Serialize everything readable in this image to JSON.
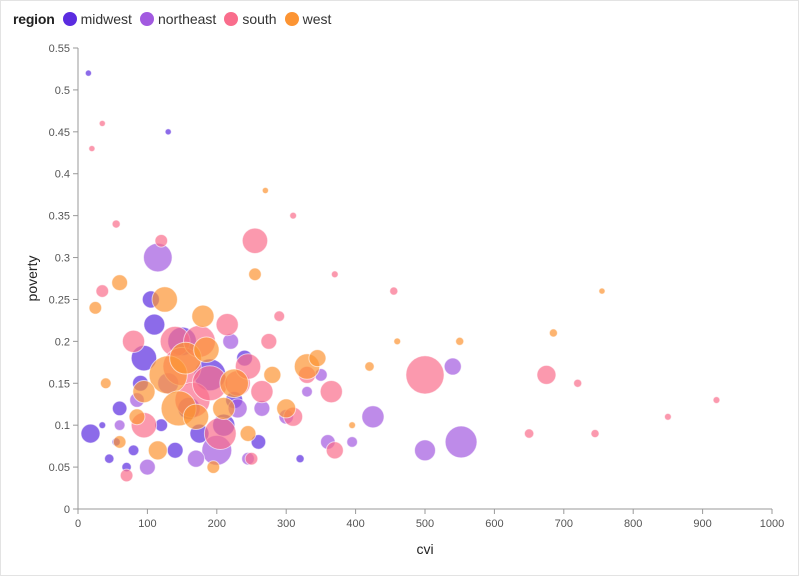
{
  "legend": {
    "title": "region",
    "items": [
      {
        "key": "midwest",
        "label": "midwest",
        "color": "#5b2ce0"
      },
      {
        "key": "northeast",
        "label": "northeast",
        "color": "#a25ae0"
      },
      {
        "key": "south",
        "label": "south",
        "color": "#f96d8c"
      },
      {
        "key": "west",
        "label": "west",
        "color": "#fc9433"
      }
    ]
  },
  "chart_data": {
    "type": "scatter",
    "xlabel": "cvi",
    "ylabel": "poverty",
    "xlim": [
      0,
      1000
    ],
    "ylim": [
      0,
      0.55
    ],
    "xticks": [
      0,
      100,
      200,
      300,
      400,
      500,
      600,
      700,
      800,
      900,
      1000
    ],
    "yticks": [
      0,
      0.05,
      0.1,
      0.15,
      0.2,
      0.25,
      0.3,
      0.35,
      0.4,
      0.45,
      0.5,
      0.55
    ],
    "grid": false,
    "legend_position": "top-left",
    "size_encoding": "bubble radius proportional to county size (relative 0-1)",
    "series": [
      {
        "name": "midwest",
        "points": [
          {
            "x": 15,
            "y": 0.52,
            "s": 0.05
          },
          {
            "x": 18,
            "y": 0.09,
            "s": 0.25
          },
          {
            "x": 45,
            "y": 0.06,
            "s": 0.1
          },
          {
            "x": 60,
            "y": 0.12,
            "s": 0.18
          },
          {
            "x": 80,
            "y": 0.07,
            "s": 0.12
          },
          {
            "x": 90,
            "y": 0.15,
            "s": 0.2
          },
          {
            "x": 95,
            "y": 0.18,
            "s": 0.35
          },
          {
            "x": 105,
            "y": 0.25,
            "s": 0.22
          },
          {
            "x": 110,
            "y": 0.22,
            "s": 0.28
          },
          {
            "x": 120,
            "y": 0.1,
            "s": 0.15
          },
          {
            "x": 130,
            "y": 0.45,
            "s": 0.05
          },
          {
            "x": 140,
            "y": 0.07,
            "s": 0.2
          },
          {
            "x": 150,
            "y": 0.2,
            "s": 0.4
          },
          {
            "x": 160,
            "y": 0.12,
            "s": 0.3
          },
          {
            "x": 175,
            "y": 0.09,
            "s": 0.25
          },
          {
            "x": 190,
            "y": 0.16,
            "s": 0.45
          },
          {
            "x": 210,
            "y": 0.1,
            "s": 0.3
          },
          {
            "x": 225,
            "y": 0.13,
            "s": 0.22
          },
          {
            "x": 240,
            "y": 0.18,
            "s": 0.2
          },
          {
            "x": 260,
            "y": 0.08,
            "s": 0.18
          },
          {
            "x": 320,
            "y": 0.06,
            "s": 0.08
          },
          {
            "x": 70,
            "y": 0.05,
            "s": 0.1
          },
          {
            "x": 35,
            "y": 0.1,
            "s": 0.06
          },
          {
            "x": 55,
            "y": 0.08,
            "s": 0.08
          }
        ]
      },
      {
        "name": "northeast",
        "points": [
          {
            "x": 115,
            "y": 0.3,
            "s": 0.4
          },
          {
            "x": 200,
            "y": 0.07,
            "s": 0.42
          },
          {
            "x": 220,
            "y": 0.2,
            "s": 0.2
          },
          {
            "x": 230,
            "y": 0.12,
            "s": 0.25
          },
          {
            "x": 265,
            "y": 0.12,
            "s": 0.2
          },
          {
            "x": 300,
            "y": 0.11,
            "s": 0.18
          },
          {
            "x": 350,
            "y": 0.16,
            "s": 0.15
          },
          {
            "x": 360,
            "y": 0.08,
            "s": 0.18
          },
          {
            "x": 395,
            "y": 0.08,
            "s": 0.12
          },
          {
            "x": 425,
            "y": 0.11,
            "s": 0.3
          },
          {
            "x": 500,
            "y": 0.07,
            "s": 0.28
          },
          {
            "x": 540,
            "y": 0.17,
            "s": 0.22
          },
          {
            "x": 552,
            "y": 0.08,
            "s": 0.45
          },
          {
            "x": 170,
            "y": 0.06,
            "s": 0.22
          },
          {
            "x": 130,
            "y": 0.15,
            "s": 0.28
          },
          {
            "x": 85,
            "y": 0.13,
            "s": 0.18
          },
          {
            "x": 245,
            "y": 0.06,
            "s": 0.15
          },
          {
            "x": 330,
            "y": 0.14,
            "s": 0.12
          },
          {
            "x": 100,
            "y": 0.05,
            "s": 0.2
          },
          {
            "x": 60,
            "y": 0.1,
            "s": 0.12
          }
        ]
      },
      {
        "name": "south",
        "points": [
          {
            "x": 20,
            "y": 0.43,
            "s": 0.05
          },
          {
            "x": 35,
            "y": 0.46,
            "s": 0.05
          },
          {
            "x": 55,
            "y": 0.34,
            "s": 0.08
          },
          {
            "x": 35,
            "y": 0.26,
            "s": 0.15
          },
          {
            "x": 120,
            "y": 0.32,
            "s": 0.15
          },
          {
            "x": 140,
            "y": 0.2,
            "s": 0.42
          },
          {
            "x": 150,
            "y": 0.17,
            "s": 0.55
          },
          {
            "x": 165,
            "y": 0.13,
            "s": 0.5
          },
          {
            "x": 175,
            "y": 0.2,
            "s": 0.45
          },
          {
            "x": 190,
            "y": 0.15,
            "s": 0.5
          },
          {
            "x": 205,
            "y": 0.09,
            "s": 0.45
          },
          {
            "x": 215,
            "y": 0.22,
            "s": 0.3
          },
          {
            "x": 230,
            "y": 0.15,
            "s": 0.35
          },
          {
            "x": 245,
            "y": 0.17,
            "s": 0.35
          },
          {
            "x": 255,
            "y": 0.32,
            "s": 0.35
          },
          {
            "x": 265,
            "y": 0.14,
            "s": 0.3
          },
          {
            "x": 275,
            "y": 0.2,
            "s": 0.2
          },
          {
            "x": 290,
            "y": 0.23,
            "s": 0.12
          },
          {
            "x": 310,
            "y": 0.11,
            "s": 0.25
          },
          {
            "x": 330,
            "y": 0.16,
            "s": 0.22
          },
          {
            "x": 365,
            "y": 0.14,
            "s": 0.3
          },
          {
            "x": 370,
            "y": 0.07,
            "s": 0.22
          },
          {
            "x": 310,
            "y": 0.35,
            "s": 0.06
          },
          {
            "x": 370,
            "y": 0.28,
            "s": 0.06
          },
          {
            "x": 455,
            "y": 0.26,
            "s": 0.08
          },
          {
            "x": 500,
            "y": 0.16,
            "s": 0.55
          },
          {
            "x": 650,
            "y": 0.09,
            "s": 0.1
          },
          {
            "x": 675,
            "y": 0.16,
            "s": 0.25
          },
          {
            "x": 720,
            "y": 0.15,
            "s": 0.08
          },
          {
            "x": 745,
            "y": 0.09,
            "s": 0.08
          },
          {
            "x": 850,
            "y": 0.11,
            "s": 0.06
          },
          {
            "x": 920,
            "y": 0.13,
            "s": 0.06
          },
          {
            "x": 80,
            "y": 0.2,
            "s": 0.3
          },
          {
            "x": 95,
            "y": 0.1,
            "s": 0.35
          },
          {
            "x": 70,
            "y": 0.04,
            "s": 0.15
          },
          {
            "x": 250,
            "y": 0.06,
            "s": 0.15
          }
        ]
      },
      {
        "name": "west",
        "points": [
          {
            "x": 25,
            "y": 0.24,
            "s": 0.15
          },
          {
            "x": 60,
            "y": 0.27,
            "s": 0.2
          },
          {
            "x": 125,
            "y": 0.25,
            "s": 0.35
          },
          {
            "x": 180,
            "y": 0.23,
            "s": 0.3
          },
          {
            "x": 130,
            "y": 0.16,
            "s": 0.55
          },
          {
            "x": 145,
            "y": 0.12,
            "s": 0.5
          },
          {
            "x": 155,
            "y": 0.18,
            "s": 0.45
          },
          {
            "x": 95,
            "y": 0.14,
            "s": 0.3
          },
          {
            "x": 85,
            "y": 0.11,
            "s": 0.2
          },
          {
            "x": 115,
            "y": 0.07,
            "s": 0.25
          },
          {
            "x": 185,
            "y": 0.19,
            "s": 0.35
          },
          {
            "x": 195,
            "y": 0.05,
            "s": 0.15
          },
          {
            "x": 225,
            "y": 0.15,
            "s": 0.4
          },
          {
            "x": 245,
            "y": 0.09,
            "s": 0.2
          },
          {
            "x": 255,
            "y": 0.28,
            "s": 0.15
          },
          {
            "x": 270,
            "y": 0.38,
            "s": 0.05
          },
          {
            "x": 280,
            "y": 0.16,
            "s": 0.22
          },
          {
            "x": 300,
            "y": 0.12,
            "s": 0.25
          },
          {
            "x": 330,
            "y": 0.17,
            "s": 0.35
          },
          {
            "x": 345,
            "y": 0.18,
            "s": 0.22
          },
          {
            "x": 395,
            "y": 0.1,
            "s": 0.06
          },
          {
            "x": 420,
            "y": 0.17,
            "s": 0.1
          },
          {
            "x": 460,
            "y": 0.2,
            "s": 0.06
          },
          {
            "x": 550,
            "y": 0.2,
            "s": 0.08
          },
          {
            "x": 685,
            "y": 0.21,
            "s": 0.08
          },
          {
            "x": 755,
            "y": 0.26,
            "s": 0.05
          },
          {
            "x": 60,
            "y": 0.08,
            "s": 0.15
          },
          {
            "x": 40,
            "y": 0.15,
            "s": 0.12
          },
          {
            "x": 210,
            "y": 0.12,
            "s": 0.3
          },
          {
            "x": 170,
            "y": 0.11,
            "s": 0.35
          }
        ]
      }
    ]
  }
}
